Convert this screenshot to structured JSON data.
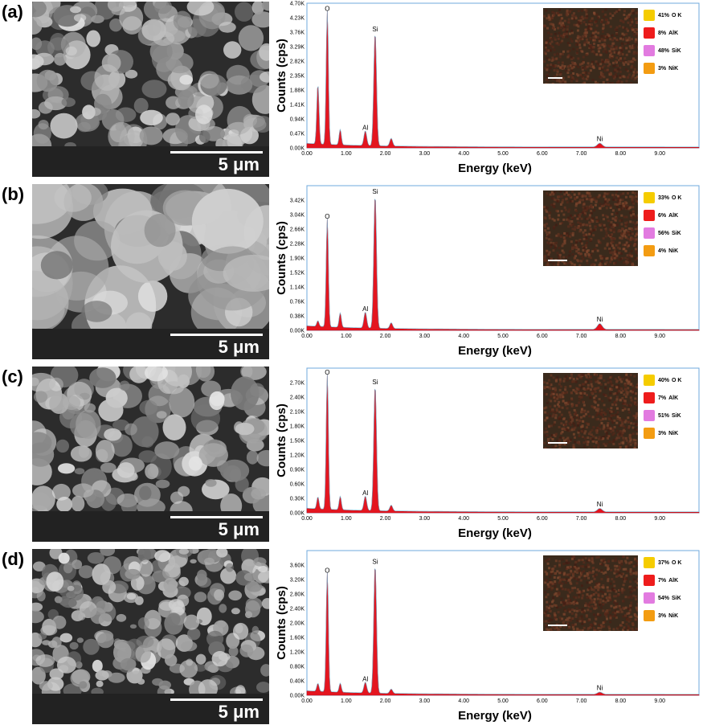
{
  "scale_bar_label": "5 μm",
  "chart_data": [
    {
      "panel": "(a)",
      "type": "line",
      "xlabel": "Energy (keV)",
      "ylabel": "Counts (cps)",
      "xlim": [
        0,
        10
      ],
      "ylim": [
        0,
        4.7
      ],
      "x_ticks": [
        "0.00",
        "1.00",
        "2.00",
        "3.00",
        "4.00",
        "5.00",
        "6.00",
        "7.00",
        "8.00",
        "9.00"
      ],
      "y_ticks": [
        "0.00K",
        "0.47K",
        "0.94K",
        "1.41K",
        "1.88K",
        "2.35K",
        "2.82K",
        "3.29K",
        "3.76K",
        "4.23K",
        "4.70K"
      ],
      "y_unit": "K cps",
      "peaks": [
        {
          "label": "",
          "keV": 0.28,
          "height": 1.95
        },
        {
          "label": "O",
          "keV": 0.52,
          "height": 4.35
        },
        {
          "label": "",
          "keV": 0.85,
          "height": 0.5
        },
        {
          "label": "Al",
          "keV": 1.49,
          "height": 0.48
        },
        {
          "label": "Si",
          "keV": 1.74,
          "height": 3.68
        },
        {
          "label": "",
          "keV": 2.15,
          "height": 0.25
        },
        {
          "label": "Ni",
          "keV": 7.47,
          "height": 0.12
        }
      ],
      "legend": [
        {
          "percent": "41%",
          "element": "O K",
          "color": "#f5cc00"
        },
        {
          "percent": "8%",
          "element": "AlK",
          "color": "#ee1c1c"
        },
        {
          "percent": "48%",
          "element": "SiK",
          "color": "#e27be0"
        },
        {
          "percent": "3%",
          "element": "NiK",
          "color": "#f39c12"
        }
      ]
    },
    {
      "panel": "(b)",
      "type": "line",
      "xlabel": "Energy (keV)",
      "ylabel": "Counts (cps)",
      "xlim": [
        0,
        10
      ],
      "ylim": [
        0,
        3.8
      ],
      "x_ticks": [
        "0.00",
        "1.00",
        "2.00",
        "3.00",
        "4.00",
        "5.00",
        "6.00",
        "7.00",
        "8.00",
        "9.00"
      ],
      "y_ticks": [
        "0.00K",
        "0.38K",
        "0.76K",
        "1.14K",
        "1.52K",
        "1.90K",
        "2.28K",
        "2.66K",
        "3.04K",
        "3.42K"
      ],
      "y_unit": "K cps",
      "peaks": [
        {
          "label": "",
          "keV": 0.28,
          "height": 0.15
        },
        {
          "label": "O",
          "keV": 0.52,
          "height": 2.85
        },
        {
          "label": "",
          "keV": 0.85,
          "height": 0.38
        },
        {
          "label": "Al",
          "keV": 1.49,
          "height": 0.42
        },
        {
          "label": "Si",
          "keV": 1.74,
          "height": 3.5
        },
        {
          "label": "",
          "keV": 2.15,
          "height": 0.15
        },
        {
          "label": "Ni",
          "keV": 7.47,
          "height": 0.15
        }
      ],
      "legend": [
        {
          "percent": "33%",
          "element": "O K",
          "color": "#f5cc00"
        },
        {
          "percent": "6%",
          "element": "AlK",
          "color": "#ee1c1c"
        },
        {
          "percent": "56%",
          "element": "SiK",
          "color": "#e27be0"
        },
        {
          "percent": "4%",
          "element": "NiK",
          "color": "#f39c12"
        }
      ]
    },
    {
      "panel": "(c)",
      "type": "line",
      "xlabel": "Energy (keV)",
      "ylabel": "Counts (cps)",
      "xlim": [
        0,
        10
      ],
      "ylim": [
        0,
        3.0
      ],
      "x_ticks": [
        "0.00",
        "1.00",
        "2.00",
        "3.00",
        "4.00",
        "5.00",
        "6.00",
        "7.00",
        "8.00",
        "9.00"
      ],
      "y_ticks": [
        "0.00K",
        "0.30K",
        "0.60K",
        "0.90K",
        "1.20K",
        "1.50K",
        "1.80K",
        "2.10K",
        "2.40K",
        "2.70K"
      ],
      "y_unit": "K cps",
      "peaks": [
        {
          "label": "",
          "keV": 0.28,
          "height": 0.25
        },
        {
          "label": "O",
          "keV": 0.52,
          "height": 2.8
        },
        {
          "label": "",
          "keV": 0.85,
          "height": 0.28
        },
        {
          "label": "Al",
          "keV": 1.49,
          "height": 0.3
        },
        {
          "label": "Si",
          "keV": 1.74,
          "height": 2.6
        },
        {
          "label": "",
          "keV": 2.15,
          "height": 0.12
        },
        {
          "label": "Ni",
          "keV": 7.47,
          "height": 0.07
        }
      ],
      "legend": [
        {
          "percent": "40%",
          "element": "O K",
          "color": "#f5cc00"
        },
        {
          "percent": "7%",
          "element": "AlK",
          "color": "#ee1c1c"
        },
        {
          "percent": "51%",
          "element": "SiK",
          "color": "#e27be0"
        },
        {
          "percent": "3%",
          "element": "NiK",
          "color": "#f39c12"
        }
      ]
    },
    {
      "panel": "(d)",
      "type": "line",
      "xlabel": "Energy (keV)",
      "ylabel": "Counts (cps)",
      "xlim": [
        0,
        10
      ],
      "ylim": [
        0,
        4.0
      ],
      "x_ticks": [
        "0.00",
        "1.00",
        "2.00",
        "3.00",
        "4.00",
        "5.00",
        "6.00",
        "7.00",
        "8.00",
        "9.00"
      ],
      "y_ticks": [
        "0.00K",
        "0.40K",
        "0.80K",
        "1.20K",
        "1.60K",
        "2.00K",
        "2.40K",
        "2.80K",
        "3.20K",
        "3.60K"
      ],
      "y_unit": "K cps",
      "peaks": [
        {
          "label": "",
          "keV": 0.28,
          "height": 0.22
        },
        {
          "label": "O",
          "keV": 0.52,
          "height": 3.3
        },
        {
          "label": "",
          "keV": 0.85,
          "height": 0.25
        },
        {
          "label": "Al",
          "keV": 1.49,
          "height": 0.3
        },
        {
          "label": "Si",
          "keV": 1.74,
          "height": 3.55
        },
        {
          "label": "",
          "keV": 2.15,
          "height": 0.12
        },
        {
          "label": "Ni",
          "keV": 7.47,
          "height": 0.06
        }
      ],
      "legend": [
        {
          "percent": "37%",
          "element": "O K",
          "color": "#f5cc00"
        },
        {
          "percent": "7%",
          "element": "AlK",
          "color": "#ee1c1c"
        },
        {
          "percent": "54%",
          "element": "SiK",
          "color": "#e27be0"
        },
        {
          "percent": "3%",
          "element": "NiK",
          "color": "#f39c12"
        }
      ]
    }
  ]
}
